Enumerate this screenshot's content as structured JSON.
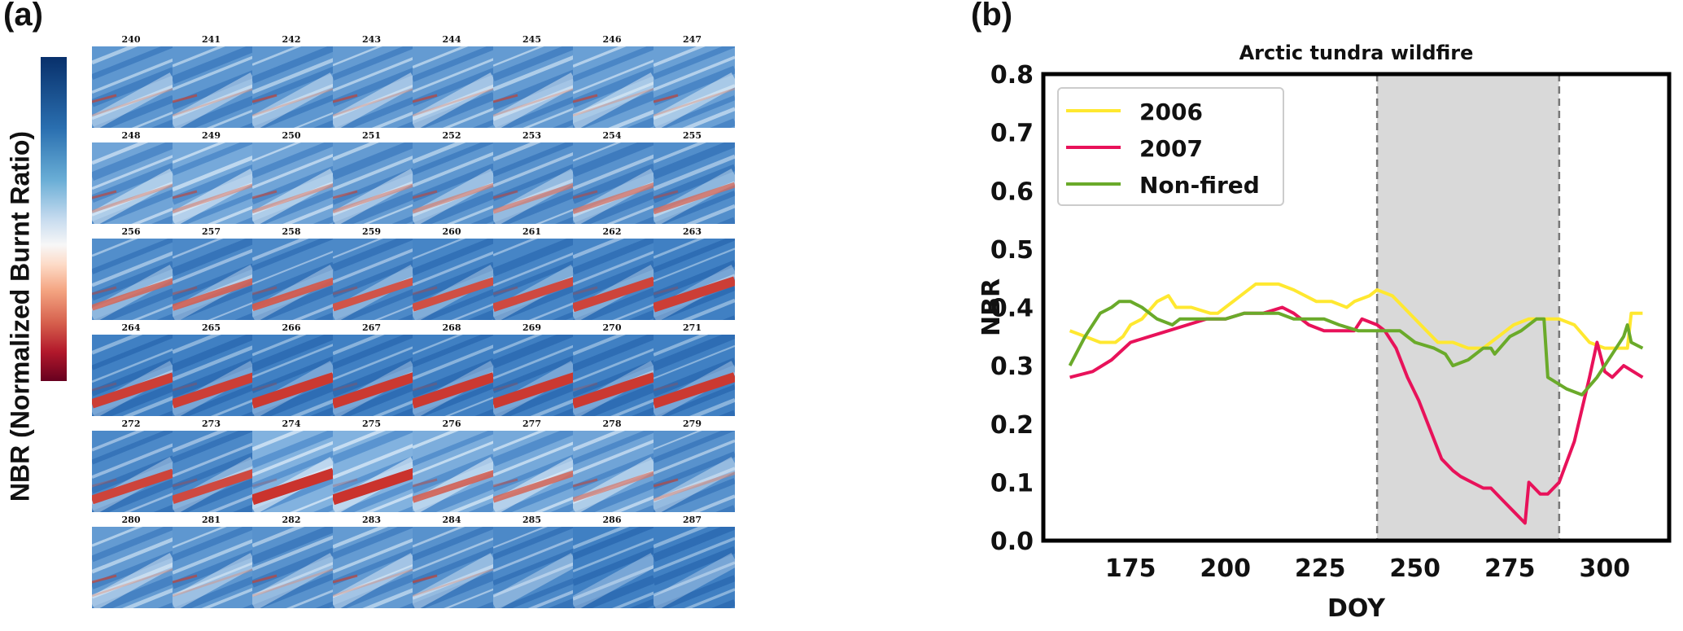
{
  "panels": {
    "a": {
      "label": "(a)",
      "colorbar_label": "NBR (Normalized Burnt Ratio)",
      "colormap": "RdBu",
      "colorbar_colors": [
        "#67001f",
        "#b2182b",
        "#d6604d",
        "#f4a582",
        "#fddbc7",
        "#f7f7f7",
        "#c6dbef",
        "#6aaed6",
        "#2a6fb0",
        "#08306b"
      ],
      "tiles": [
        {
          "doy": "240",
          "burn": 0.05,
          "bright": 0.45
        },
        {
          "doy": "241",
          "burn": 0.05,
          "bright": 0.45
        },
        {
          "doy": "242",
          "burn": 0.05,
          "bright": 0.45
        },
        {
          "doy": "243",
          "burn": 0.05,
          "bright": 0.5
        },
        {
          "doy": "244",
          "burn": 0.05,
          "bright": 0.5
        },
        {
          "doy": "245",
          "burn": 0.05,
          "bright": 0.5
        },
        {
          "doy": "246",
          "burn": 0.05,
          "bright": 0.55
        },
        {
          "doy": "247",
          "burn": 0.05,
          "bright": 0.55
        },
        {
          "doy": "248",
          "burn": 0.15,
          "bright": 0.6
        },
        {
          "doy": "249",
          "burn": 0.2,
          "bright": 0.65
        },
        {
          "doy": "250",
          "burn": 0.2,
          "bright": 0.6
        },
        {
          "doy": "251",
          "burn": 0.2,
          "bright": 0.5
        },
        {
          "doy": "252",
          "burn": 0.25,
          "bright": 0.45
        },
        {
          "doy": "253",
          "burn": 0.3,
          "bright": 0.4
        },
        {
          "doy": "254",
          "burn": 0.35,
          "bright": 0.4
        },
        {
          "doy": "255",
          "burn": 0.4,
          "bright": 0.35
        },
        {
          "doy": "256",
          "burn": 0.45,
          "bright": 0.35
        },
        {
          "doy": "257",
          "burn": 0.5,
          "bright": 0.3
        },
        {
          "doy": "258",
          "burn": 0.55,
          "bright": 0.3
        },
        {
          "doy": "259",
          "burn": 0.6,
          "bright": 0.3
        },
        {
          "doy": "260",
          "burn": 0.65,
          "bright": 0.25
        },
        {
          "doy": "261",
          "burn": 0.7,
          "bright": 0.25
        },
        {
          "doy": "262",
          "burn": 0.75,
          "bright": 0.25
        },
        {
          "doy": "263",
          "burn": 0.8,
          "bright": 0.2
        },
        {
          "doy": "264",
          "burn": 0.8,
          "bright": 0.2
        },
        {
          "doy": "265",
          "burn": 0.8,
          "bright": 0.2
        },
        {
          "doy": "266",
          "burn": 0.85,
          "bright": 0.2
        },
        {
          "doy": "267",
          "burn": 0.85,
          "bright": 0.2
        },
        {
          "doy": "268",
          "burn": 0.85,
          "bright": 0.2
        },
        {
          "doy": "269",
          "burn": 0.85,
          "bright": 0.2
        },
        {
          "doy": "270",
          "burn": 0.85,
          "bright": 0.2
        },
        {
          "doy": "271",
          "burn": 0.85,
          "bright": 0.2
        },
        {
          "doy": "272",
          "burn": 0.75,
          "bright": 0.3
        },
        {
          "doy": "273",
          "burn": 0.7,
          "bright": 0.3
        },
        {
          "doy": "274",
          "burn": 0.9,
          "bright": 0.75
        },
        {
          "doy": "275",
          "burn": 0.9,
          "bright": 0.75
        },
        {
          "doy": "276",
          "burn": 0.5,
          "bright": 0.7
        },
        {
          "doy": "277",
          "burn": 0.45,
          "bright": 0.65
        },
        {
          "doy": "278",
          "burn": 0.3,
          "bright": 0.6
        },
        {
          "doy": "279",
          "burn": 0.15,
          "bright": 0.4
        },
        {
          "doy": "280",
          "burn": 0.05,
          "bright": 0.5
        },
        {
          "doy": "281",
          "burn": 0.05,
          "bright": 0.45
        },
        {
          "doy": "282",
          "burn": 0.05,
          "bright": 0.4
        },
        {
          "doy": "283",
          "burn": 0.05,
          "bright": 0.5
        },
        {
          "doy": "284",
          "burn": 0.03,
          "bright": 0.4
        },
        {
          "doy": "285",
          "burn": 0.02,
          "bright": 0.3
        },
        {
          "doy": "286",
          "burn": 0.0,
          "bright": 0.2
        },
        {
          "doy": "287",
          "burn": 0.0,
          "bright": 0.2
        }
      ]
    },
    "b": {
      "label": "(b)"
    }
  },
  "chart_data": {
    "type": "line",
    "title": "Arctic tundra wildfire",
    "xlabel": "DOY",
    "ylabel": "NBR",
    "xlim": [
      152,
      317
    ],
    "ylim": [
      0.0,
      0.8
    ],
    "xticks": [
      175,
      200,
      225,
      250,
      275,
      300
    ],
    "yticks": [
      0.0,
      0.1,
      0.2,
      0.3,
      0.4,
      0.5,
      0.6,
      0.7,
      0.8
    ],
    "xtick_labels": [
      "175",
      "200",
      "225",
      "250",
      "275",
      "300"
    ],
    "ytick_labels": [
      "0.0",
      "0.1",
      "0.2",
      "0.3",
      "0.4",
      "0.5",
      "0.6",
      "0.7",
      "0.8"
    ],
    "grid": false,
    "legend_position": "top-left",
    "shaded_span": {
      "x_start": 240,
      "x_end": 288,
      "color": "#d9d9d9",
      "edge_style": "dashed",
      "edge_color": "#777777"
    },
    "series": [
      {
        "name": "2006",
        "color": "#ffe830",
        "x": [
          159,
          163,
          167,
          171,
          173,
          175,
          178,
          182,
          185,
          187,
          191,
          196,
          198,
          200,
          204,
          208,
          210,
          214,
          218,
          224,
          228,
          232,
          234,
          238,
          240,
          244,
          250,
          256,
          260,
          264,
          268,
          272,
          276,
          280,
          284,
          288,
          292,
          296,
          300,
          304,
          306,
          307,
          310
        ],
        "y": [
          0.36,
          0.35,
          0.34,
          0.34,
          0.35,
          0.37,
          0.38,
          0.41,
          0.42,
          0.4,
          0.4,
          0.39,
          0.39,
          0.4,
          0.42,
          0.44,
          0.44,
          0.44,
          0.43,
          0.41,
          0.41,
          0.4,
          0.41,
          0.42,
          0.43,
          0.42,
          0.38,
          0.34,
          0.34,
          0.33,
          0.33,
          0.35,
          0.37,
          0.38,
          0.38,
          0.38,
          0.37,
          0.34,
          0.33,
          0.33,
          0.33,
          0.39,
          0.39
        ]
      },
      {
        "name": "2007",
        "color": "#e8125a",
        "x": [
          159,
          165,
          170,
          175,
          180,
          185,
          190,
          195,
          200,
          205,
          210,
          215,
          218,
          222,
          226,
          230,
          234,
          236,
          240,
          242,
          245,
          248,
          251,
          254,
          257,
          260,
          262,
          265,
          268,
          270,
          273,
          276,
          279,
          280,
          283,
          285,
          288,
          292,
          296,
          298,
          300,
          302,
          305,
          310
        ],
        "y": [
          0.28,
          0.29,
          0.31,
          0.34,
          0.35,
          0.36,
          0.37,
          0.38,
          0.38,
          0.39,
          0.39,
          0.4,
          0.39,
          0.37,
          0.36,
          0.36,
          0.36,
          0.38,
          0.37,
          0.36,
          0.33,
          0.28,
          0.24,
          0.19,
          0.14,
          0.12,
          0.11,
          0.1,
          0.09,
          0.09,
          0.07,
          0.05,
          0.03,
          0.1,
          0.08,
          0.08,
          0.1,
          0.17,
          0.28,
          0.34,
          0.29,
          0.28,
          0.3,
          0.28
        ]
      },
      {
        "name": "Non-fired",
        "color": "#6aaa2a",
        "x": [
          159,
          163,
          167,
          170,
          172,
          175,
          178,
          182,
          186,
          188,
          192,
          200,
          205,
          210,
          214,
          218,
          222,
          226,
          230,
          235,
          240,
          244,
          246,
          250,
          255,
          258,
          260,
          264,
          268,
          270,
          271,
          275,
          278,
          282,
          284,
          285,
          290,
          294,
          298,
          302,
          305,
          306,
          307,
          310
        ],
        "y": [
          0.3,
          0.35,
          0.39,
          0.4,
          0.41,
          0.41,
          0.4,
          0.38,
          0.37,
          0.38,
          0.38,
          0.38,
          0.39,
          0.39,
          0.39,
          0.38,
          0.38,
          0.38,
          0.37,
          0.36,
          0.36,
          0.36,
          0.36,
          0.34,
          0.33,
          0.32,
          0.3,
          0.31,
          0.33,
          0.33,
          0.32,
          0.35,
          0.36,
          0.38,
          0.38,
          0.28,
          0.26,
          0.25,
          0.28,
          0.32,
          0.35,
          0.37,
          0.34,
          0.33
        ]
      }
    ]
  }
}
